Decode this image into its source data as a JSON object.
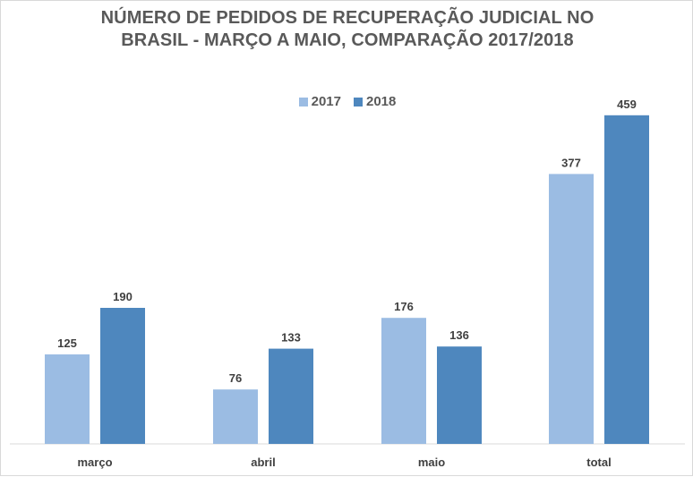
{
  "chart_data": {
    "type": "bar",
    "title": [
      "NÚMERO DE PEDIDOS DE RECUPERAÇÃO JUDICIAL NO",
      "BRASIL - MARÇO A MAIO, COMPARAÇÃO 2017/2018"
    ],
    "categories": [
      "março",
      "abril",
      "maio",
      "total"
    ],
    "series": [
      {
        "name": "2017",
        "values": [
          125,
          76,
          176,
          377
        ],
        "color": "#9bbce3"
      },
      {
        "name": "2018",
        "values": [
          190,
          133,
          136,
          459
        ],
        "color": "#4e87be"
      }
    ],
    "xlabel": "",
    "ylabel": "",
    "ylim": [
      0,
      480
    ],
    "grid": false,
    "legend": "top-center"
  }
}
